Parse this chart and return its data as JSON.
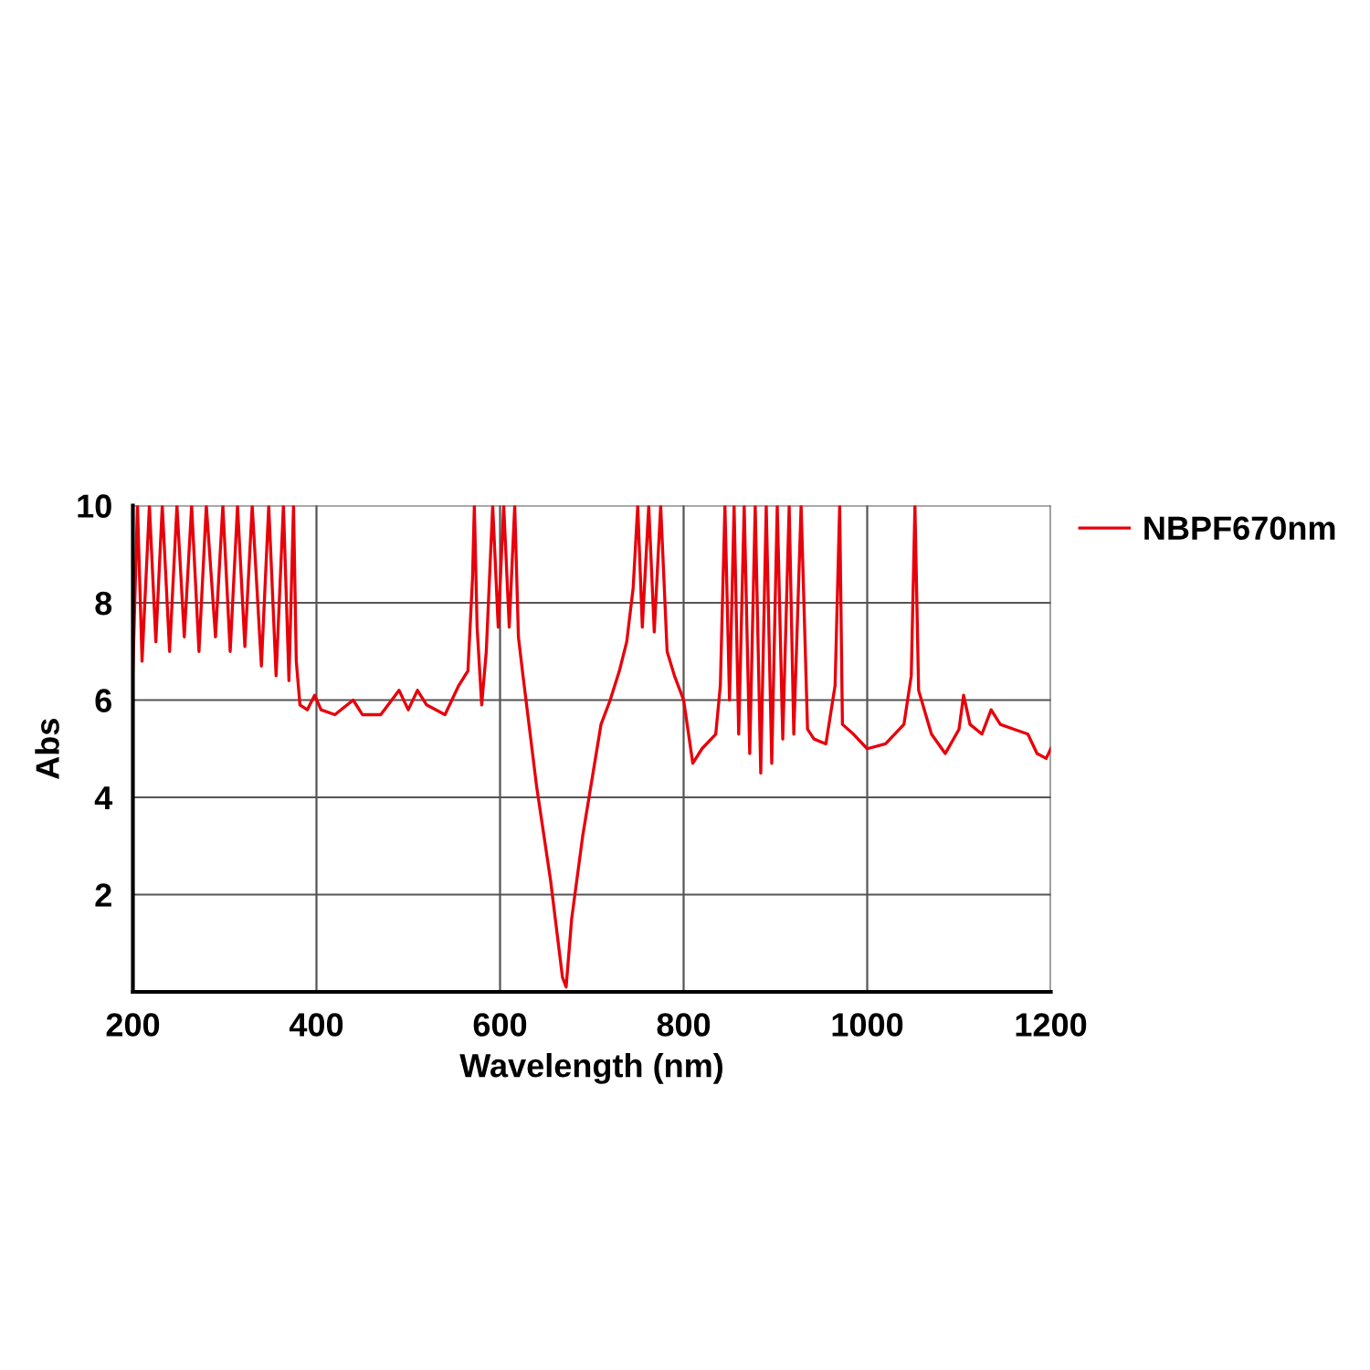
{
  "chart_data": {
    "type": "line",
    "xlabel": "Wavelength (nm)",
    "ylabel": "Abs",
    "x": [
      200,
      205,
      210,
      218,
      225,
      232,
      240,
      248,
      256,
      264,
      272,
      280,
      290,
      298,
      306,
      314,
      322,
      330,
      340,
      348,
      356,
      364,
      370,
      375,
      378,
      382,
      390,
      398,
      405,
      420,
      440,
      450,
      470,
      490,
      500,
      510,
      520,
      540,
      555,
      565,
      570,
      572,
      575,
      580,
      585,
      592,
      598,
      604,
      610,
      616,
      620,
      625,
      640,
      655,
      668,
      672,
      678,
      690,
      710,
      720,
      730,
      738,
      745,
      750,
      755,
      762,
      768,
      775,
      782,
      790,
      800,
      810,
      820,
      835,
      840,
      845,
      850,
      855,
      860,
      866,
      872,
      878,
      884,
      890,
      896,
      902,
      908,
      915,
      920,
      928,
      935,
      942,
      955,
      965,
      970,
      973,
      985,
      1000,
      1020,
      1040,
      1048,
      1052,
      1056,
      1070,
      1085,
      1100,
      1105,
      1112,
      1125,
      1135,
      1145,
      1160,
      1175,
      1185,
      1195,
      1200
    ],
    "series": [
      {
        "name": "NBPF670nm",
        "color": "#e8000b",
        "values": [
          6.6,
          10,
          6.8,
          10,
          7.2,
          10,
          7.0,
          10,
          7.3,
          10,
          7.0,
          10,
          7.3,
          10,
          7.0,
          10,
          7.1,
          10,
          6.7,
          10,
          6.5,
          10,
          6.4,
          10,
          6.8,
          5.9,
          5.8,
          6.1,
          5.8,
          5.7,
          6.0,
          5.7,
          5.7,
          6.2,
          5.8,
          6.2,
          5.9,
          5.7,
          6.3,
          6.6,
          8.5,
          10,
          7.5,
          5.9,
          7.0,
          10,
          7.5,
          10,
          7.5,
          10,
          7.3,
          6.5,
          4.2,
          2.3,
          0.3,
          0.1,
          1.5,
          3.2,
          5.5,
          6.0,
          6.6,
          7.2,
          8.3,
          10,
          7.5,
          10,
          7.4,
          10,
          7.0,
          6.5,
          6.0,
          4.7,
          5.0,
          5.3,
          6.3,
          10,
          6.0,
          10,
          5.3,
          10,
          4.9,
          10,
          4.5,
          10,
          4.7,
          10,
          5.2,
          10,
          5.3,
          10,
          5.4,
          5.2,
          5.1,
          6.3,
          10,
          5.5,
          5.3,
          5.0,
          5.1,
          5.5,
          6.5,
          10,
          6.2,
          5.3,
          4.9,
          5.4,
          6.1,
          5.5,
          5.3,
          5.8,
          5.5,
          5.4,
          5.3,
          4.9,
          4.8,
          5.0
        ]
      }
    ],
    "xlim": [
      200,
      1200
    ],
    "xticks": [
      200,
      400,
      600,
      800,
      1000,
      1200
    ],
    "ylim": [
      0,
      10
    ],
    "yticks": [
      2,
      4,
      6,
      8,
      10
    ],
    "grid": true,
    "legend": "top right"
  }
}
